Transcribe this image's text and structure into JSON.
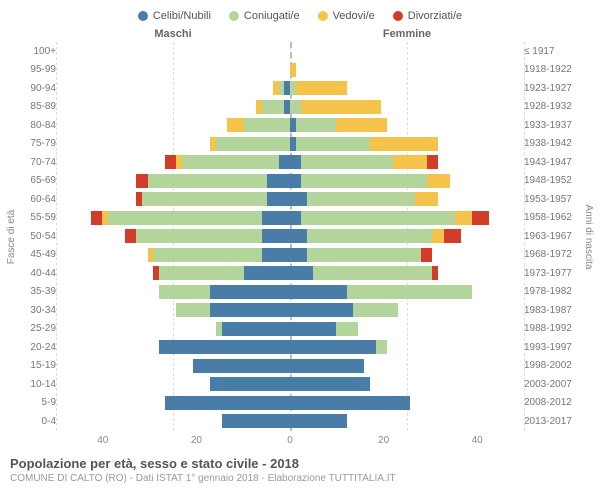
{
  "legend": [
    {
      "label": "Celibi/Nubili",
      "color": "#4a7ca8"
    },
    {
      "label": "Coniugati/e",
      "color": "#b3d49a"
    },
    {
      "label": "Vedovi/e",
      "color": "#f5c24a"
    },
    {
      "label": "Divorziati/e",
      "color": "#d23c2a"
    }
  ],
  "headers": {
    "male": "Maschi",
    "female": "Femmine"
  },
  "ylabel_left": "Fasce di età",
  "ylabel_right": "Anni di nascita",
  "title": "Popolazione per età, sesso e stato civile - 2018",
  "subtitle": "COMUNE DI CALTO (RO) - Dati ISTAT 1° gennaio 2018 - Elaborazione TUTTITALIA.IT",
  "axis": {
    "max": 40,
    "ticks_left": [
      "40",
      "20",
      "0"
    ],
    "ticks_right": [
      "0",
      "20",
      "40"
    ]
  },
  "colors": {
    "celibi": "#4a7ca8",
    "coniugati": "#b3d49a",
    "vedovi": "#f5c24a",
    "divorziati": "#d23c2a",
    "grid": "#dddddd",
    "center": "#bbbbbb",
    "bg": "#ffffff",
    "text": "#777777"
  },
  "rows": [
    {
      "age": "100+",
      "birth": "≤ 1917",
      "m": [
        0,
        0,
        0,
        0
      ],
      "f": [
        0,
        0,
        0,
        0
      ]
    },
    {
      "age": "95-99",
      "birth": "1918-1922",
      "m": [
        0,
        0,
        0,
        0
      ],
      "f": [
        0,
        0,
        1,
        0
      ]
    },
    {
      "age": "90-94",
      "birth": "1923-1927",
      "m": [
        1,
        1,
        1,
        0
      ],
      "f": [
        0,
        1,
        9,
        0
      ]
    },
    {
      "age": "85-89",
      "birth": "1928-1932",
      "m": [
        1,
        4,
        1,
        0
      ],
      "f": [
        0,
        2,
        14,
        0
      ]
    },
    {
      "age": "80-84",
      "birth": "1933-1937",
      "m": [
        0,
        8,
        3,
        0
      ],
      "f": [
        1,
        7,
        9,
        0
      ]
    },
    {
      "age": "75-79",
      "birth": "1938-1942",
      "m": [
        0,
        13,
        1,
        0
      ],
      "f": [
        1,
        13,
        12,
        0
      ]
    },
    {
      "age": "70-74",
      "birth": "1943-1947",
      "m": [
        2,
        17,
        1,
        2
      ],
      "f": [
        2,
        16,
        6,
        2
      ]
    },
    {
      "age": "65-69",
      "birth": "1948-1952",
      "m": [
        4,
        21,
        0,
        2
      ],
      "f": [
        2,
        22,
        4,
        0
      ]
    },
    {
      "age": "60-64",
      "birth": "1953-1957",
      "m": [
        4,
        22,
        0,
        1
      ],
      "f": [
        3,
        19,
        4,
        0
      ]
    },
    {
      "age": "55-59",
      "birth": "1958-1962",
      "m": [
        5,
        27,
        1,
        2
      ],
      "f": [
        2,
        27,
        3,
        3
      ]
    },
    {
      "age": "50-54",
      "birth": "1963-1967",
      "m": [
        5,
        22,
        0,
        2
      ],
      "f": [
        3,
        22,
        2,
        3
      ]
    },
    {
      "age": "45-49",
      "birth": "1968-1972",
      "m": [
        5,
        19,
        1,
        0
      ],
      "f": [
        3,
        20,
        0,
        2
      ]
    },
    {
      "age": "40-44",
      "birth": "1973-1977",
      "m": [
        8,
        15,
        0,
        1
      ],
      "f": [
        4,
        21,
        0,
        1
      ]
    },
    {
      "age": "35-39",
      "birth": "1978-1982",
      "m": [
        14,
        9,
        0,
        0
      ],
      "f": [
        10,
        22,
        0,
        0
      ]
    },
    {
      "age": "30-34",
      "birth": "1983-1987",
      "m": [
        14,
        6,
        0,
        0
      ],
      "f": [
        11,
        8,
        0,
        0
      ]
    },
    {
      "age": "25-29",
      "birth": "1988-1992",
      "m": [
        12,
        1,
        0,
        0
      ],
      "f": [
        8,
        4,
        0,
        0
      ]
    },
    {
      "age": "20-24",
      "birth": "1993-1997",
      "m": [
        23,
        0,
        0,
        0
      ],
      "f": [
        15,
        2,
        0,
        0
      ]
    },
    {
      "age": "15-19",
      "birth": "1998-2002",
      "m": [
        17,
        0,
        0,
        0
      ],
      "f": [
        13,
        0,
        0,
        0
      ]
    },
    {
      "age": "10-14",
      "birth": "2003-2007",
      "m": [
        14,
        0,
        0,
        0
      ],
      "f": [
        14,
        0,
        0,
        0
      ]
    },
    {
      "age": "5-9",
      "birth": "2008-2012",
      "m": [
        22,
        0,
        0,
        0
      ],
      "f": [
        21,
        0,
        0,
        0
      ]
    },
    {
      "age": "0-4",
      "birth": "2013-2017",
      "m": [
        12,
        0,
        0,
        0
      ],
      "f": [
        10,
        0,
        0,
        0
      ]
    }
  ]
}
